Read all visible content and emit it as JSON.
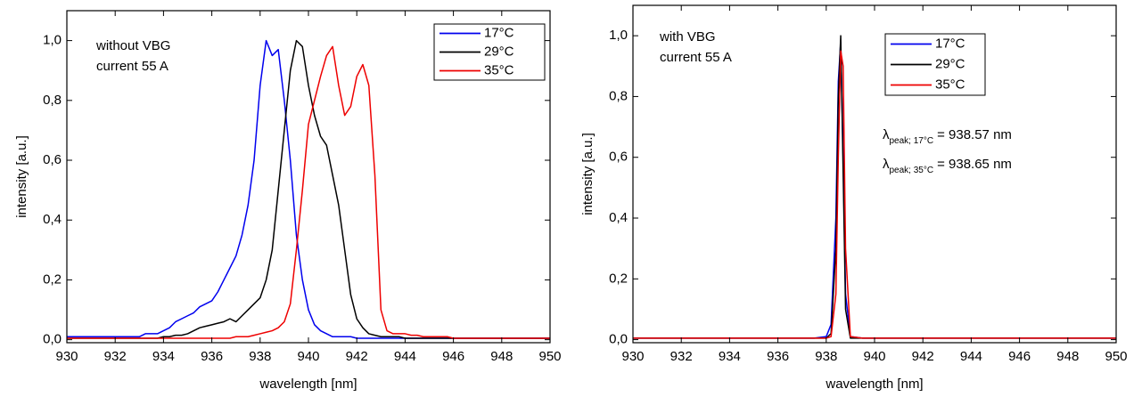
{
  "chart_data": [
    {
      "type": "line",
      "xlabel": "wavelength [nm]",
      "ylabel": "intensity [a.u.]",
      "annotations": [
        "without VBG",
        "current 55 A"
      ],
      "legend": "upper right",
      "xlim": [
        930,
        950
      ],
      "xticks": [
        930,
        932,
        934,
        936,
        938,
        940,
        942,
        944,
        946,
        948,
        950
      ],
      "ylim": [
        -0.01,
        1.1
      ],
      "yticks": [
        {
          "value": 0,
          "label": "0,0"
        },
        {
          "value": 0.2,
          "label": "0,2"
        },
        {
          "value": 0.4,
          "label": "0,4"
        },
        {
          "value": 0.6,
          "label": "0,6"
        },
        {
          "value": 0.8,
          "label": "0,8"
        },
        {
          "value": 1.0,
          "label": "1,0"
        }
      ],
      "x": [
        930,
        930.25,
        930.5,
        930.75,
        931,
        931.25,
        931.5,
        931.75,
        932,
        932.25,
        932.5,
        932.75,
        933,
        933.25,
        933.5,
        933.75,
        934,
        934.25,
        934.5,
        934.75,
        935,
        935.25,
        935.5,
        935.75,
        936,
        936.25,
        936.5,
        936.75,
        937,
        937.25,
        937.5,
        937.75,
        938,
        938.25,
        938.5,
        938.75,
        939,
        939.25,
        939.5,
        939.75,
        940,
        940.25,
        940.5,
        940.75,
        941,
        941.25,
        941.5,
        941.75,
        942,
        942.25,
        942.5,
        942.75,
        943,
        943.25,
        943.5,
        943.75,
        944,
        944.25,
        944.5,
        944.75,
        945,
        945.25,
        945.5,
        945.75,
        946,
        946.25,
        946.5,
        946.75,
        947,
        947.25,
        947.5,
        947.75,
        948,
        948.25,
        948.5,
        948.75,
        949,
        949.25,
        949.5,
        949.75,
        950
      ],
      "series": [
        {
          "name": "17°C",
          "color": "#0000ee",
          "values": [
            0.01,
            0.01,
            0.01,
            0.01,
            0.01,
            0.01,
            0.01,
            0.01,
            0.01,
            0.01,
            0.01,
            0.01,
            0.01,
            0.02,
            0.02,
            0.02,
            0.03,
            0.04,
            0.06,
            0.07,
            0.08,
            0.09,
            0.11,
            0.12,
            0.13,
            0.16,
            0.2,
            0.24,
            0.28,
            0.35,
            0.45,
            0.6,
            0.85,
            1.0,
            0.95,
            0.97,
            0.8,
            0.6,
            0.35,
            0.2,
            0.1,
            0.05,
            0.03,
            0.02,
            0.01,
            0.01,
            0.01,
            0.01,
            0.005,
            0.005,
            0.005,
            0.005,
            0.005,
            0.005,
            0.005,
            0.005,
            0.005,
            0.005,
            0.005,
            0.005,
            0.005,
            0.005,
            0.005,
            0.005,
            0.005,
            0.005,
            0.005,
            0.005,
            0.005,
            0.005,
            0.005,
            0.005,
            0.005,
            0.005,
            0.005,
            0.005,
            0.005,
            0.005,
            0.005,
            0.005,
            0.005
          ]
        },
        {
          "name": "29°C",
          "color": "#000000",
          "values": [
            0.005,
            0.005,
            0.005,
            0.005,
            0.005,
            0.005,
            0.005,
            0.005,
            0.005,
            0.005,
            0.005,
            0.005,
            0.005,
            0.005,
            0.005,
            0.005,
            0.01,
            0.01,
            0.015,
            0.015,
            0.02,
            0.03,
            0.04,
            0.045,
            0.05,
            0.055,
            0.06,
            0.07,
            0.06,
            0.08,
            0.1,
            0.12,
            0.14,
            0.2,
            0.3,
            0.5,
            0.7,
            0.9,
            1.0,
            0.98,
            0.85,
            0.75,
            0.68,
            0.65,
            0.55,
            0.45,
            0.3,
            0.15,
            0.07,
            0.04,
            0.02,
            0.015,
            0.01,
            0.01,
            0.01,
            0.01,
            0.005,
            0.005,
            0.005,
            0.005,
            0.005,
            0.005,
            0.005,
            0.005,
            0.005,
            0.005,
            0.005,
            0.005,
            0.005,
            0.005,
            0.005,
            0.005,
            0.005,
            0.005,
            0.005,
            0.005,
            0.005,
            0.005,
            0.005,
            0.005,
            0.005
          ]
        },
        {
          "name": "35°C",
          "color": "#ee0000",
          "values": [
            0.005,
            0.005,
            0.005,
            0.005,
            0.005,
            0.005,
            0.005,
            0.005,
            0.005,
            0.005,
            0.005,
            0.005,
            0.005,
            0.005,
            0.005,
            0.005,
            0.005,
            0.005,
            0.005,
            0.005,
            0.005,
            0.005,
            0.005,
            0.005,
            0.005,
            0.005,
            0.005,
            0.005,
            0.01,
            0.01,
            0.01,
            0.015,
            0.02,
            0.025,
            0.03,
            0.04,
            0.06,
            0.12,
            0.3,
            0.5,
            0.72,
            0.8,
            0.88,
            0.95,
            0.98,
            0.85,
            0.75,
            0.78,
            0.88,
            0.92,
            0.85,
            0.55,
            0.1,
            0.03,
            0.02,
            0.02,
            0.02,
            0.015,
            0.015,
            0.01,
            0.01,
            0.01,
            0.01,
            0.01,
            0.005,
            0.005,
            0.005,
            0.005,
            0.005,
            0.005,
            0.005,
            0.005,
            0.005,
            0.005,
            0.005,
            0.005,
            0.005,
            0.005,
            0.005,
            0.005,
            0.005
          ]
        }
      ]
    },
    {
      "type": "line",
      "xlabel": "wavelength [nm]",
      "ylabel": "intensity [a.u.]",
      "annotations": [
        "with VBG",
        "current 55 A"
      ],
      "peak_annotations": [
        {
          "symbol": "λ",
          "subscript": "peak; 17°C",
          "text": "= 938.57 nm"
        },
        {
          "symbol": "λ",
          "subscript": "peak; 35°C",
          "text": "= 938.65 nm"
        }
      ],
      "legend": "upper right",
      "xlim": [
        930,
        950
      ],
      "xticks": [
        930,
        932,
        934,
        936,
        938,
        940,
        942,
        944,
        946,
        948,
        950
      ],
      "ylim": [
        -0.01,
        1.1
      ],
      "yticks": [
        {
          "value": 0,
          "label": "0,0"
        },
        {
          "value": 0.2,
          "label": "0,2"
        },
        {
          "value": 0.4,
          "label": "0,4"
        },
        {
          "value": 0.6,
          "label": "0,6"
        },
        {
          "value": 0.8,
          "label": "0,8"
        },
        {
          "value": 1.0,
          "label": "1,0"
        }
      ],
      "x": [
        930,
        932,
        934,
        936,
        937.5,
        938,
        938.2,
        938.4,
        938.5,
        938.6,
        938.7,
        938.8,
        939,
        939.5,
        942,
        946,
        950
      ],
      "series": [
        {
          "name": "17°C",
          "color": "#0000ee",
          "values": [
            0.005,
            0.005,
            0.005,
            0.005,
            0.005,
            0.01,
            0.05,
            0.4,
            0.85,
            0.98,
            0.6,
            0.15,
            0.01,
            0.005,
            0.005,
            0.005,
            0.005
          ]
        },
        {
          "name": "29°C",
          "color": "#000000",
          "values": [
            0.005,
            0.005,
            0.005,
            0.005,
            0.005,
            0.005,
            0.02,
            0.3,
            0.8,
            1.0,
            0.55,
            0.1,
            0.005,
            0.005,
            0.005,
            0.005,
            0.005
          ]
        },
        {
          "name": "35°C",
          "color": "#ee0000",
          "values": [
            0.005,
            0.005,
            0.005,
            0.005,
            0.005,
            0.005,
            0.01,
            0.15,
            0.6,
            0.95,
            0.9,
            0.3,
            0.01,
            0.005,
            0.005,
            0.005,
            0.005
          ]
        }
      ]
    }
  ]
}
